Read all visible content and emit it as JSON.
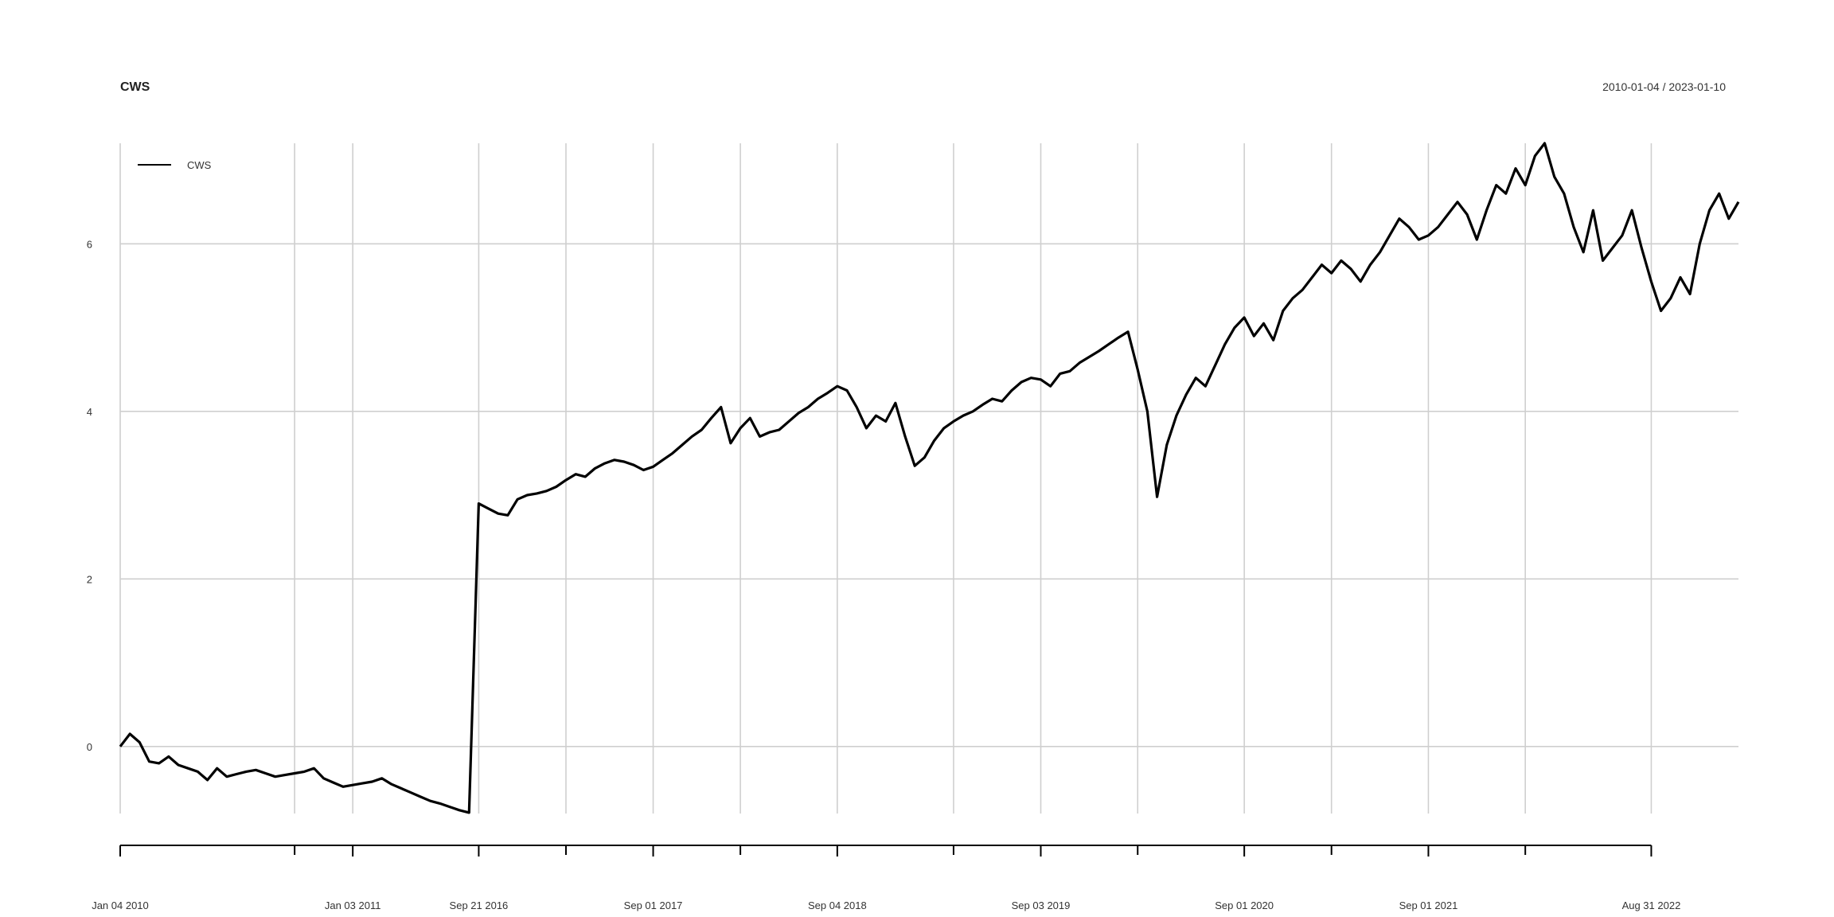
{
  "chart_data": {
    "type": "line",
    "title": "CWS",
    "date_range": "2010-01-04 / 2023-01-10",
    "legend": {
      "entries": [
        "CWS"
      ],
      "placement": "top-left"
    },
    "grid": true,
    "ylim": [
      -0.8,
      7.2
    ],
    "y_ticks": [
      "0",
      "2",
      "4",
      "6"
    ],
    "x_tick_labels": [
      "Jan 04 2010",
      "Jan 03 2011",
      "Sep 21 2016",
      "Sep 01 2017",
      "Sep 04 2018",
      "Sep 03 2019",
      "Sep 01 2020",
      "Sep 01 2021",
      "Aug 31 2022"
    ],
    "series": [
      {
        "name": "CWS",
        "color": "#000000",
        "points": [
          [
            "2010-01-04",
            0.0
          ],
          [
            "2010-01-08",
            0.15
          ],
          [
            "2010-01-15",
            0.05
          ],
          [
            "2010-01-25",
            -0.18
          ],
          [
            "2010-02-05",
            -0.2
          ],
          [
            "2010-02-20",
            -0.12
          ],
          [
            "2010-03-10",
            -0.22
          ],
          [
            "2010-03-25",
            -0.26
          ],
          [
            "2010-04-15",
            -0.3
          ],
          [
            "2010-04-28",
            -0.4
          ],
          [
            "2010-05-05",
            -0.26
          ],
          [
            "2010-05-15",
            -0.36
          ],
          [
            "2010-06-01",
            -0.33
          ],
          [
            "2010-06-20",
            -0.3
          ],
          [
            "2010-07-10",
            -0.28
          ],
          [
            "2010-08-01",
            -0.32
          ],
          [
            "2010-08-20",
            -0.36
          ],
          [
            "2010-09-10",
            -0.34
          ],
          [
            "2010-10-01",
            -0.32
          ],
          [
            "2010-10-20",
            -0.3
          ],
          [
            "2010-11-01",
            -0.26
          ],
          [
            "2010-11-15",
            -0.38
          ],
          [
            "2010-12-01",
            -0.43
          ],
          [
            "2010-12-15",
            -0.48
          ],
          [
            "2011-01-03",
            -0.46
          ],
          [
            "2011-01-20",
            -0.44
          ],
          [
            "2011-02-10",
            -0.42
          ],
          [
            "2011-02-25",
            -0.38
          ],
          [
            "2011-03-15",
            -0.45
          ],
          [
            "2011-04-01",
            -0.5
          ],
          [
            "2011-04-20",
            -0.55
          ],
          [
            "2011-05-05",
            -0.6
          ],
          [
            "2011-05-20",
            -0.65
          ],
          [
            "2011-06-05",
            -0.68
          ],
          [
            "2011-06-20",
            -0.72
          ],
          [
            "2011-07-05",
            -0.76
          ],
          [
            "2011-07-20",
            -0.79
          ],
          [
            "2016-09-21",
            2.9
          ],
          [
            "2016-10-05",
            2.84
          ],
          [
            "2016-10-20",
            2.78
          ],
          [
            "2016-11-02",
            2.76
          ],
          [
            "2016-11-15",
            2.95
          ],
          [
            "2016-12-01",
            3.0
          ],
          [
            "2016-12-20",
            3.02
          ],
          [
            "2017-01-15",
            3.05
          ],
          [
            "2017-02-10",
            3.1
          ],
          [
            "2017-03-01",
            3.18
          ],
          [
            "2017-03-20",
            3.25
          ],
          [
            "2017-04-15",
            3.22
          ],
          [
            "2017-05-10",
            3.32
          ],
          [
            "2017-06-01",
            3.38
          ],
          [
            "2017-06-20",
            3.42
          ],
          [
            "2017-07-10",
            3.4
          ],
          [
            "2017-08-01",
            3.36
          ],
          [
            "2017-08-20",
            3.3
          ],
          [
            "2017-09-01",
            3.34
          ],
          [
            "2017-09-20",
            3.42
          ],
          [
            "2017-10-15",
            3.5
          ],
          [
            "2017-11-10",
            3.6
          ],
          [
            "2017-12-01",
            3.7
          ],
          [
            "2017-12-20",
            3.78
          ],
          [
            "2018-01-10",
            3.92
          ],
          [
            "2018-01-26",
            4.05
          ],
          [
            "2018-02-08",
            3.62
          ],
          [
            "2018-02-20",
            3.8
          ],
          [
            "2018-03-10",
            3.92
          ],
          [
            "2018-03-25",
            3.7
          ],
          [
            "2018-04-10",
            3.75
          ],
          [
            "2018-05-01",
            3.78
          ],
          [
            "2018-06-01",
            3.88
          ],
          [
            "2018-06-20",
            3.98
          ],
          [
            "2018-07-10",
            4.05
          ],
          [
            "2018-08-01",
            4.15
          ],
          [
            "2018-08-20",
            4.22
          ],
          [
            "2018-09-04",
            4.3
          ],
          [
            "2018-09-20",
            4.25
          ],
          [
            "2018-10-10",
            4.05
          ],
          [
            "2018-10-25",
            3.8
          ],
          [
            "2018-11-10",
            3.95
          ],
          [
            "2018-11-25",
            3.88
          ],
          [
            "2018-12-05",
            4.1
          ],
          [
            "2018-12-15",
            3.7
          ],
          [
            "2018-12-24",
            3.35
          ],
          [
            "2019-01-05",
            3.45
          ],
          [
            "2019-01-20",
            3.65
          ],
          [
            "2019-02-10",
            3.8
          ],
          [
            "2019-03-01",
            3.88
          ],
          [
            "2019-03-20",
            3.95
          ],
          [
            "2019-04-15",
            4.0
          ],
          [
            "2019-05-10",
            4.08
          ],
          [
            "2019-06-01",
            4.15
          ],
          [
            "2019-06-20",
            4.12
          ],
          [
            "2019-07-15",
            4.25
          ],
          [
            "2019-08-05",
            4.35
          ],
          [
            "2019-08-20",
            4.4
          ],
          [
            "2019-09-03",
            4.38
          ],
          [
            "2019-09-20",
            4.3
          ],
          [
            "2019-10-05",
            4.45
          ],
          [
            "2019-10-25",
            4.48
          ],
          [
            "2019-11-15",
            4.58
          ],
          [
            "2019-12-05",
            4.65
          ],
          [
            "2019-12-25",
            4.72
          ],
          [
            "2020-01-15",
            4.8
          ],
          [
            "2020-02-05",
            4.88
          ],
          [
            "2020-02-20",
            4.95
          ],
          [
            "2020-02-28",
            4.5
          ],
          [
            "2020-03-10",
            4.0
          ],
          [
            "2020-03-23",
            2.98
          ],
          [
            "2020-04-05",
            3.6
          ],
          [
            "2020-04-20",
            3.95
          ],
          [
            "2020-05-10",
            4.2
          ],
          [
            "2020-06-05",
            4.4
          ],
          [
            "2020-06-20",
            4.3
          ],
          [
            "2020-07-15",
            4.55
          ],
          [
            "2020-08-05",
            4.8
          ],
          [
            "2020-08-20",
            5.0
          ],
          [
            "2020-09-01",
            5.12
          ],
          [
            "2020-09-15",
            4.9
          ],
          [
            "2020-10-05",
            5.05
          ],
          [
            "2020-10-28",
            4.85
          ],
          [
            "2020-11-10",
            5.2
          ],
          [
            "2020-12-01",
            5.35
          ],
          [
            "2020-12-20",
            5.45
          ],
          [
            "2021-01-15",
            5.6
          ],
          [
            "2021-02-10",
            5.75
          ],
          [
            "2021-02-25",
            5.65
          ],
          [
            "2021-03-15",
            5.8
          ],
          [
            "2021-04-05",
            5.7
          ],
          [
            "2021-04-20",
            5.55
          ],
          [
            "2021-05-10",
            5.75
          ],
          [
            "2021-05-25",
            5.9
          ],
          [
            "2021-06-15",
            6.1
          ],
          [
            "2021-07-01",
            6.3
          ],
          [
            "2021-07-20",
            6.2
          ],
          [
            "2021-08-10",
            6.05
          ],
          [
            "2021-09-01",
            6.1
          ],
          [
            "2021-09-20",
            6.2
          ],
          [
            "2021-10-10",
            6.35
          ],
          [
            "2021-11-01",
            6.5
          ],
          [
            "2021-11-15",
            6.35
          ],
          [
            "2021-12-01",
            6.05
          ],
          [
            "2021-12-20",
            6.4
          ],
          [
            "2022-01-05",
            6.7
          ],
          [
            "2022-01-20",
            6.6
          ],
          [
            "2022-02-05",
            6.9
          ],
          [
            "2022-02-20",
            6.7
          ],
          [
            "2022-03-10",
            7.05
          ],
          [
            "2022-03-25",
            7.2
          ],
          [
            "2022-04-10",
            6.8
          ],
          [
            "2022-04-25",
            6.6
          ],
          [
            "2022-05-10",
            6.2
          ],
          [
            "2022-05-20",
            5.9
          ],
          [
            "2022-06-01",
            6.4
          ],
          [
            "2022-06-16",
            5.8
          ],
          [
            "2022-07-05",
            5.95
          ],
          [
            "2022-07-20",
            6.1
          ],
          [
            "2022-08-05",
            6.4
          ],
          [
            "2022-08-20",
            5.95
          ],
          [
            "2022-08-31",
            5.55
          ],
          [
            "2022-09-15",
            5.2
          ],
          [
            "2022-09-30",
            5.35
          ],
          [
            "2022-10-15",
            5.6
          ],
          [
            "2022-10-30",
            5.4
          ],
          [
            "2022-11-10",
            6.0
          ],
          [
            "2022-11-25",
            6.4
          ],
          [
            "2022-12-10",
            6.6
          ],
          [
            "2022-12-25",
            6.3
          ],
          [
            "2023-01-10",
            6.5
          ]
        ]
      }
    ]
  }
}
